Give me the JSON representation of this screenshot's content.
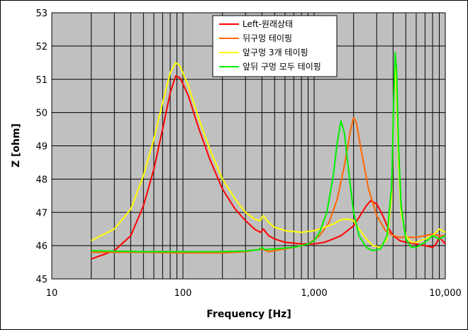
{
  "chart_data": {
    "type": "line",
    "title": "",
    "xlabel": "Frequency [Hz]",
    "ylabel": "Z [ohm]",
    "x_scale": "log",
    "xlim": [
      10,
      10000
    ],
    "ylim": [
      45,
      53
    ],
    "x_ticks": [
      10,
      100,
      1000,
      10000
    ],
    "x_tick_labels": [
      "10",
      "100",
      "1,000",
      "10,000"
    ],
    "y_ticks": [
      45,
      46,
      47,
      48,
      49,
      50,
      51,
      52,
      53
    ],
    "y_tick_labels": [
      "45",
      "46",
      "47",
      "48",
      "49",
      "50",
      "51",
      "52",
      "53"
    ],
    "grid": true,
    "plot_background": "#c0c0c0",
    "legend_position": "top-right",
    "series": [
      {
        "name": "Left-원래상태",
        "color": "#ff0000",
        "points": [
          [
            20,
            45.6
          ],
          [
            30,
            45.85
          ],
          [
            40,
            46.3
          ],
          [
            50,
            47.2
          ],
          [
            60,
            48.3
          ],
          [
            70,
            49.5
          ],
          [
            80,
            50.6
          ],
          [
            88,
            51.1
          ],
          [
            95,
            51.05
          ],
          [
            110,
            50.5
          ],
          [
            130,
            49.6
          ],
          [
            160,
            48.6
          ],
          [
            200,
            47.7
          ],
          [
            250,
            47.1
          ],
          [
            300,
            46.75
          ],
          [
            350,
            46.5
          ],
          [
            390,
            46.4
          ],
          [
            410,
            46.5
          ],
          [
            450,
            46.3
          ],
          [
            500,
            46.2
          ],
          [
            600,
            46.1
          ],
          [
            800,
            46.05
          ],
          [
            1000,
            46.05
          ],
          [
            1200,
            46.1
          ],
          [
            1400,
            46.2
          ],
          [
            1600,
            46.3
          ],
          [
            1800,
            46.45
          ],
          [
            2000,
            46.6
          ],
          [
            2200,
            46.85
          ],
          [
            2500,
            47.2
          ],
          [
            2700,
            47.35
          ],
          [
            3000,
            47.25
          ],
          [
            3300,
            46.95
          ],
          [
            3600,
            46.6
          ],
          [
            4000,
            46.3
          ],
          [
            4500,
            46.15
          ],
          [
            5000,
            46.1
          ],
          [
            6000,
            46.05
          ],
          [
            7000,
            46.0
          ],
          [
            8000,
            45.95
          ],
          [
            8500,
            46.05
          ],
          [
            9000,
            46.25
          ],
          [
            9500,
            46.15
          ],
          [
            10000,
            46.05
          ]
        ]
      },
      {
        "name": "뒤구멍 테이핑",
        "color": "#ff6600",
        "points": [
          [
            20,
            45.8
          ],
          [
            50,
            45.8
          ],
          [
            100,
            45.78
          ],
          [
            200,
            45.78
          ],
          [
            300,
            45.82
          ],
          [
            400,
            45.9
          ],
          [
            450,
            45.82
          ],
          [
            500,
            45.85
          ],
          [
            700,
            45.95
          ],
          [
            900,
            46.05
          ],
          [
            1100,
            46.3
          ],
          [
            1300,
            46.7
          ],
          [
            1500,
            47.4
          ],
          [
            1700,
            48.4
          ],
          [
            1900,
            49.5
          ],
          [
            2000,
            49.85
          ],
          [
            2100,
            49.7
          ],
          [
            2300,
            48.8
          ],
          [
            2600,
            47.7
          ],
          [
            3000,
            46.9
          ],
          [
            3500,
            46.45
          ],
          [
            4000,
            46.3
          ],
          [
            4500,
            46.25
          ],
          [
            5000,
            46.25
          ],
          [
            6000,
            46.25
          ],
          [
            7000,
            46.3
          ],
          [
            8000,
            46.35
          ],
          [
            9000,
            46.3
          ],
          [
            10000,
            46.3
          ]
        ]
      },
      {
        "name": "앞구멍 3개 테이핑",
        "color": "#ffff00",
        "points": [
          [
            20,
            46.15
          ],
          [
            30,
            46.5
          ],
          [
            40,
            47.1
          ],
          [
            50,
            48.1
          ],
          [
            60,
            49.2
          ],
          [
            70,
            50.3
          ],
          [
            80,
            51.2
          ],
          [
            88,
            51.5
          ],
          [
            95,
            51.4
          ],
          [
            110,
            50.8
          ],
          [
            130,
            49.9
          ],
          [
            160,
            48.9
          ],
          [
            200,
            48.0
          ],
          [
            250,
            47.4
          ],
          [
            300,
            47.0
          ],
          [
            350,
            46.8
          ],
          [
            390,
            46.75
          ],
          [
            400,
            46.85
          ],
          [
            410,
            46.9
          ],
          [
            450,
            46.7
          ],
          [
            500,
            46.55
          ],
          [
            600,
            46.45
          ],
          [
            800,
            46.4
          ],
          [
            1000,
            46.45
          ],
          [
            1200,
            46.55
          ],
          [
            1400,
            46.65
          ],
          [
            1600,
            46.78
          ],
          [
            1800,
            46.8
          ],
          [
            2000,
            46.75
          ],
          [
            2200,
            46.5
          ],
          [
            2500,
            46.2
          ],
          [
            2800,
            46.0
          ],
          [
            3200,
            45.95
          ],
          [
            3600,
            46.2
          ],
          [
            3900,
            47.5
          ],
          [
            4050,
            50.5
          ],
          [
            4150,
            51.5
          ],
          [
            4250,
            50.5
          ],
          [
            4400,
            48.5
          ],
          [
            4600,
            47.0
          ],
          [
            5000,
            46.3
          ],
          [
            5500,
            46.1
          ],
          [
            6000,
            46.1
          ],
          [
            7000,
            46.2
          ],
          [
            8000,
            46.3
          ],
          [
            9000,
            46.5
          ],
          [
            10000,
            46.4
          ]
        ]
      },
      {
        "name": "앞뒤 구멍 모두 테이핑",
        "color": "#00ee00",
        "points": [
          [
            20,
            45.85
          ],
          [
            50,
            45.82
          ],
          [
            100,
            45.82
          ],
          [
            200,
            45.82
          ],
          [
            300,
            45.84
          ],
          [
            380,
            45.88
          ],
          [
            400,
            45.95
          ],
          [
            420,
            45.88
          ],
          [
            500,
            45.9
          ],
          [
            700,
            45.95
          ],
          [
            900,
            46.05
          ],
          [
            1000,
            46.15
          ],
          [
            1100,
            46.4
          ],
          [
            1250,
            47.0
          ],
          [
            1400,
            48.1
          ],
          [
            1500,
            49.1
          ],
          [
            1600,
            49.75
          ],
          [
            1700,
            49.4
          ],
          [
            1850,
            48.1
          ],
          [
            2000,
            47.0
          ],
          [
            2200,
            46.3
          ],
          [
            2500,
            45.95
          ],
          [
            2800,
            45.85
          ],
          [
            3200,
            45.9
          ],
          [
            3600,
            46.3
          ],
          [
            3900,
            47.8
          ],
          [
            4050,
            50.5
          ],
          [
            4150,
            51.8
          ],
          [
            4250,
            51.3
          ],
          [
            4400,
            49.0
          ],
          [
            4600,
            47.2
          ],
          [
            5000,
            46.2
          ],
          [
            5500,
            45.95
          ],
          [
            6000,
            45.95
          ],
          [
            7000,
            46.1
          ],
          [
            8000,
            46.3
          ],
          [
            9000,
            46.2
          ],
          [
            10000,
            46.3
          ]
        ]
      }
    ]
  }
}
